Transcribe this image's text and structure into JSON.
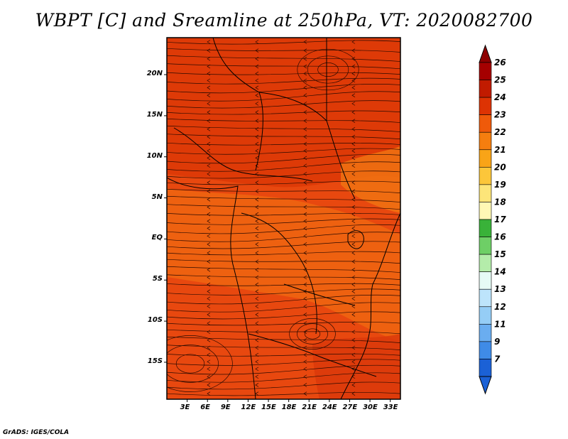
{
  "title": "WBPT [C] and Sreamline at 250hPa, VT: 2020082700",
  "credit": "GrADS: IGES/COLA",
  "map": {
    "lat_ticks": [
      {
        "lat": 20,
        "label": "20N"
      },
      {
        "lat": 15,
        "label": "15N"
      },
      {
        "lat": 10,
        "label": "10N"
      },
      {
        "lat": 5,
        "label": "5N"
      },
      {
        "lat": 0,
        "label": "EQ"
      },
      {
        "lat": -5,
        "label": "5S"
      },
      {
        "lat": -10,
        "label": "10S"
      },
      {
        "lat": -15,
        "label": "15S"
      }
    ],
    "lon_ticks": [
      {
        "lon": 3,
        "label": "3E"
      },
      {
        "lon": 6,
        "label": "6E"
      },
      {
        "lon": 9,
        "label": "9E"
      },
      {
        "lon": 12,
        "label": "12E"
      },
      {
        "lon": 15,
        "label": "15E"
      },
      {
        "lon": 18,
        "label": "18E"
      },
      {
        "lon": 21,
        "label": "21E"
      },
      {
        "lon": 24,
        "label": "24E"
      },
      {
        "lon": 27,
        "label": "27E"
      },
      {
        "lon": 30,
        "label": "30E"
      },
      {
        "lon": 33,
        "label": "33E"
      }
    ],
    "lat_range": [
      -19.5,
      24.5
    ],
    "lon_range": [
      0,
      34.5
    ],
    "dominant_field_color": "#e8480f"
  },
  "colorbar": {
    "levels": [
      {
        "label": "26",
        "color": "#a50000"
      },
      {
        "label": "25",
        "color": "#c11b00"
      },
      {
        "label": "24",
        "color": "#dd3303"
      },
      {
        "label": "23",
        "color": "#ef5a0a"
      },
      {
        "label": "22",
        "color": "#f57e0f"
      },
      {
        "label": "21",
        "color": "#f9a417"
      },
      {
        "label": "20",
        "color": "#fcc63a"
      },
      {
        "label": "19",
        "color": "#fde579"
      },
      {
        "label": "18",
        "color": "#fff8b5"
      },
      {
        "label": "17",
        "color": "#39b239"
      },
      {
        "label": "16",
        "color": "#6ecf66"
      },
      {
        "label": "15",
        "color": "#b4ecaa"
      },
      {
        "label": "14",
        "color": "#e6fbf5"
      },
      {
        "label": "13",
        "color": "#bde4fb"
      },
      {
        "label": "12",
        "color": "#95cdf6"
      },
      {
        "label": "11",
        "color": "#6aadf0"
      },
      {
        "label": "9",
        "color": "#3f8be7"
      },
      {
        "label": "7",
        "color": "#1b61d6"
      }
    ],
    "top_arrow_color": "#8e0000",
    "bottom_arrow_color": "#1b61d6"
  }
}
